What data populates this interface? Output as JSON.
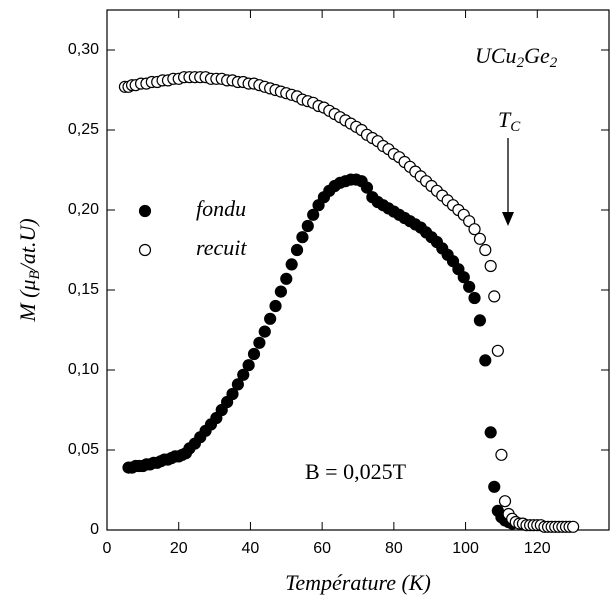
{
  "chart_data": {
    "type": "scatter",
    "xlabel": "Température (K)",
    "ylabel": [
      "M (μ",
      "B",
      "/at.U)"
    ],
    "xlim": [
      0,
      140
    ],
    "ylim": [
      0,
      0.325
    ],
    "xticks": [
      0,
      20,
      40,
      60,
      80,
      100,
      120
    ],
    "yticks": [
      0,
      {
        "value": 0.05,
        "label": "0,05"
      },
      {
        "value": 0.1,
        "label": "0,10"
      },
      {
        "value": 0.15,
        "label": "0,15"
      },
      {
        "value": 0.2,
        "label": "0,20"
      },
      {
        "value": 0.25,
        "label": "0,25"
      },
      {
        "value": 0.3,
        "label": "0,30"
      }
    ],
    "legend": "upper left",
    "annotations": [
      {
        "parts": [
          "UCu",
          "2",
          "Ge",
          "2"
        ]
      },
      {
        "parts": [
          "T",
          "C"
        ]
      },
      {
        "parts": [
          "B = 0,025T"
        ]
      }
    ],
    "series": [
      {
        "name": "fondu",
        "marker": "filled",
        "color": "#000000",
        "x": [
          6,
          7,
          8,
          9,
          10,
          11,
          12,
          13,
          14,
          15,
          16,
          17,
          18,
          19,
          20,
          21,
          22,
          23,
          24.5,
          26,
          27.5,
          29,
          30.5,
          32,
          33.5,
          35,
          36.5,
          38,
          39.5,
          41,
          42.5,
          44,
          45.5,
          47,
          48.5,
          50,
          51.5,
          53,
          54.5,
          56,
          57.5,
          59,
          60.5,
          62,
          63.5,
          65,
          66.5,
          68,
          69.5,
          71,
          72.5,
          74,
          75.5,
          77,
          78.5,
          80,
          81.5,
          83,
          84.5,
          86,
          87.5,
          89,
          90.5,
          92,
          93.5,
          95,
          96.5,
          98,
          99.5,
          101,
          102.5,
          104,
          105.5,
          107,
          108,
          109,
          110,
          111,
          112,
          113
        ],
        "values": [
          0.039,
          0.039,
          0.04,
          0.04,
          0.04,
          0.041,
          0.041,
          0.042,
          0.042,
          0.043,
          0.044,
          0.044,
          0.045,
          0.046,
          0.046,
          0.047,
          0.048,
          0.051,
          0.054,
          0.058,
          0.062,
          0.066,
          0.07,
          0.075,
          0.08,
          0.085,
          0.091,
          0.097,
          0.103,
          0.11,
          0.117,
          0.124,
          0.132,
          0.14,
          0.149,
          0.157,
          0.166,
          0.175,
          0.183,
          0.19,
          0.197,
          0.203,
          0.208,
          0.212,
          0.215,
          0.217,
          0.218,
          0.219,
          0.219,
          0.218,
          0.214,
          0.208,
          0.205,
          0.203,
          0.201,
          0.199,
          0.197,
          0.195,
          0.193,
          0.191,
          0.189,
          0.186,
          0.183,
          0.18,
          0.176,
          0.172,
          0.168,
          0.163,
          0.158,
          0.152,
          0.145,
          0.131,
          0.106,
          0.061,
          0.027,
          0.012,
          0.008,
          0.006,
          0.005,
          0.004
        ]
      },
      {
        "name": "recuit",
        "marker": "open",
        "color": "#000000",
        "x": [
          5,
          6,
          7,
          8,
          9.5,
          11,
          12.5,
          14,
          15.5,
          17,
          18.5,
          20,
          21.5,
          23,
          24.5,
          26,
          27.5,
          29,
          30.5,
          32,
          33.5,
          35,
          36.5,
          38,
          39.5,
          41,
          42.5,
          44,
          45.5,
          47,
          48.5,
          50,
          51.5,
          53,
          54.5,
          56,
          57.5,
          59,
          60.5,
          62,
          63.5,
          65,
          66.5,
          68,
          69.5,
          71,
          72.5,
          74,
          75.5,
          77,
          78.5,
          80,
          81.5,
          83,
          84.5,
          86,
          87.5,
          89,
          90.5,
          92,
          93.5,
          95,
          96.5,
          98,
          99.5,
          101,
          102.5,
          104,
          105.5,
          107,
          108,
          109,
          110,
          111,
          112,
          113,
          114,
          115,
          116,
          117,
          118,
          119,
          120,
          121,
          122,
          123,
          124,
          125,
          126,
          127,
          128,
          129,
          130
        ],
        "values": [
          0.277,
          0.277,
          0.278,
          0.278,
          0.279,
          0.279,
          0.28,
          0.28,
          0.281,
          0.281,
          0.282,
          0.282,
          0.283,
          0.283,
          0.283,
          0.283,
          0.283,
          0.282,
          0.282,
          0.282,
          0.281,
          0.281,
          0.28,
          0.28,
          0.279,
          0.279,
          0.278,
          0.277,
          0.276,
          0.275,
          0.274,
          0.273,
          0.272,
          0.271,
          0.269,
          0.268,
          0.267,
          0.265,
          0.264,
          0.262,
          0.26,
          0.258,
          0.256,
          0.254,
          0.252,
          0.25,
          0.247,
          0.245,
          0.243,
          0.24,
          0.238,
          0.235,
          0.233,
          0.23,
          0.227,
          0.224,
          0.221,
          0.218,
          0.215,
          0.212,
          0.209,
          0.206,
          0.203,
          0.2,
          0.197,
          0.193,
          0.188,
          0.182,
          0.175,
          0.165,
          0.146,
          0.112,
          0.047,
          0.018,
          0.01,
          0.007,
          0.005,
          0.004,
          0.004,
          0.003,
          0.003,
          0.003,
          0.003,
          0.003,
          0.002,
          0.002,
          0.002,
          0.002,
          0.002,
          0.002,
          0.002,
          0.002,
          0.002
        ]
      }
    ]
  }
}
